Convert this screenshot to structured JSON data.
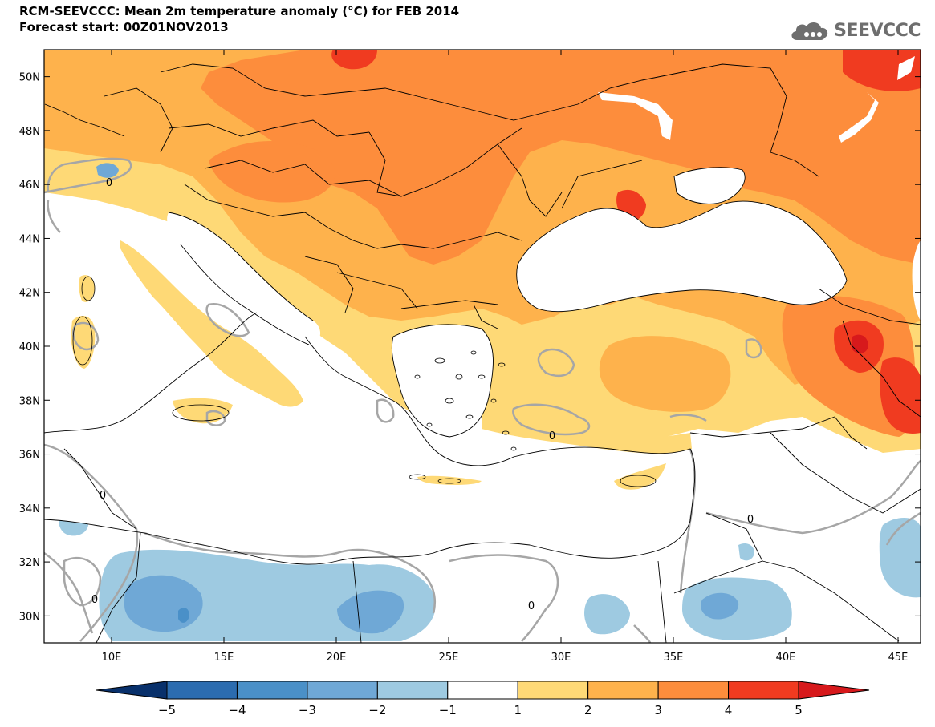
{
  "title": {
    "line1": "RCM-SEEVCCC: Mean 2m temperature anomaly (°C) for FEB 2014",
    "line2": "Forecast start: 00Z01NOV2013"
  },
  "logo": {
    "text": "SEEVCCC",
    "icon": "cloud-icon"
  },
  "map": {
    "lon_range": [
      7,
      46
    ],
    "lat_range": [
      29,
      51
    ],
    "lat_ticks": [
      {
        "value": 50,
        "label": "50N"
      },
      {
        "value": 48,
        "label": "48N"
      },
      {
        "value": 46,
        "label": "46N"
      },
      {
        "value": 44,
        "label": "44N"
      },
      {
        "value": 42,
        "label": "42N"
      },
      {
        "value": 40,
        "label": "40N"
      },
      {
        "value": 38,
        "label": "38N"
      },
      {
        "value": 36,
        "label": "36N"
      },
      {
        "value": 34,
        "label": "34N"
      },
      {
        "value": 32,
        "label": "32N"
      },
      {
        "value": 30,
        "label": "30N"
      }
    ],
    "lon_ticks": [
      {
        "value": 10,
        "label": "10E"
      },
      {
        "value": 15,
        "label": "15E"
      },
      {
        "value": 20,
        "label": "20E"
      },
      {
        "value": 25,
        "label": "25E"
      },
      {
        "value": 30,
        "label": "30E"
      },
      {
        "value": 35,
        "label": "35E"
      },
      {
        "value": 40,
        "label": "40E"
      },
      {
        "value": 45,
        "label": "45E"
      }
    ],
    "contour_zero_label": "0"
  },
  "colorbar": {
    "labels": [
      "−5",
      "−4",
      "−3",
      "−2",
      "−1",
      "1",
      "2",
      "3",
      "4",
      "5"
    ],
    "colors": [
      "#08306b",
      "#2b6cb0",
      "#4a90c8",
      "#6fa8d6",
      "#9ecae1",
      "#ffffff",
      "#fed976",
      "#feb24c",
      "#fd8d3c",
      "#f03b20",
      "#d7191c"
    ]
  },
  "palette": {
    "a1": "#fed976",
    "a2": "#feb24c",
    "a3": "#fd8d3c",
    "a4": "#f03b20",
    "a5": "#d7191c",
    "n1": "#9ecae1",
    "n2": "#6fa8d6",
    "n3": "#4a90c8",
    "sea": "#ffffff",
    "contour": "#a6a6a6"
  }
}
